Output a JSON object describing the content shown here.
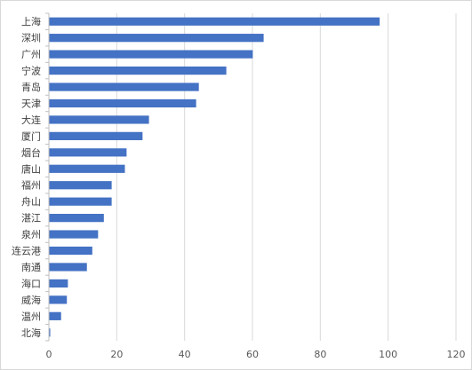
{
  "chart_data": {
    "type": "bar",
    "orientation": "horizontal",
    "categories": [
      "上海",
      "深圳",
      "广州",
      "宁波",
      "青岛",
      "天津",
      "大连",
      "厦门",
      "烟台",
      "唐山",
      "福州",
      "舟山",
      "湛江",
      "泉州",
      "连云港",
      "南通",
      "海口",
      "威海",
      "温州",
      "北海"
    ],
    "values": [
      97.5,
      63.3,
      60.1,
      52.3,
      44.2,
      43.4,
      29.5,
      27.6,
      22.9,
      22.4,
      18.5,
      18.5,
      16.2,
      14.5,
      12.8,
      11.2,
      5.6,
      5.3,
      3.6,
      0.4
    ],
    "xlim": [
      0,
      120
    ],
    "xticks": [
      0,
      20,
      40,
      60,
      80,
      100,
      120
    ],
    "xtick_labels": [
      "0",
      "20",
      "40",
      "60",
      "80",
      "100",
      "120"
    ],
    "grid": true,
    "legend": "none",
    "bar_color": "#4472c4",
    "gridline_color": "#d9d9d9",
    "axis_color": "#bfbfbf"
  }
}
